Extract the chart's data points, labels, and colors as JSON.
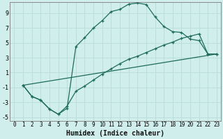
{
  "xlabel": "Humidex (Indice chaleur)",
  "background_color": "#d0eeeb",
  "grid_color": "#b8dcd8",
  "line_color": "#1e6b5e",
  "xlim": [
    -0.5,
    23.5
  ],
  "ylim": [
    -5.5,
    10.5
  ],
  "xticks": [
    0,
    1,
    2,
    3,
    4,
    5,
    6,
    7,
    8,
    9,
    10,
    11,
    12,
    13,
    14,
    15,
    16,
    17,
    18,
    19,
    20,
    21,
    22,
    23
  ],
  "yticks": [
    -5,
    -3,
    -1,
    1,
    3,
    5,
    7,
    9
  ],
  "line1_x": [
    1,
    2,
    3,
    4,
    5,
    6,
    7,
    8,
    9,
    10,
    11,
    12,
    13,
    14,
    15,
    16,
    17,
    18,
    19,
    20,
    21,
    22,
    23
  ],
  "line1_y": [
    -0.7,
    -2.2,
    -2.7,
    -3.9,
    -4.6,
    -3.8,
    4.5,
    5.7,
    7.0,
    8.0,
    9.2,
    9.5,
    10.2,
    10.35,
    10.15,
    8.5,
    7.2,
    6.5,
    6.4,
    5.5,
    5.3,
    3.5,
    3.5
  ],
  "line2_x": [
    1,
    2,
    3,
    4,
    5,
    6,
    7,
    8,
    9,
    10,
    11,
    12,
    13,
    14,
    15,
    16,
    17,
    18,
    19,
    20,
    21,
    22,
    23
  ],
  "line2_y": [
    -0.7,
    -2.2,
    -2.7,
    -3.9,
    -4.6,
    -3.5,
    -1.5,
    -0.8,
    0.0,
    0.8,
    1.5,
    2.2,
    2.8,
    3.2,
    3.7,
    4.2,
    4.7,
    5.1,
    5.6,
    5.9,
    6.2,
    3.5,
    3.5
  ],
  "line3_x": [
    1,
    23
  ],
  "line3_y": [
    -0.7,
    3.5
  ],
  "xlabel_fontsize": 7,
  "tick_fontsize": 5.5,
  "linewidth": 0.9,
  "markersize": 3.5
}
